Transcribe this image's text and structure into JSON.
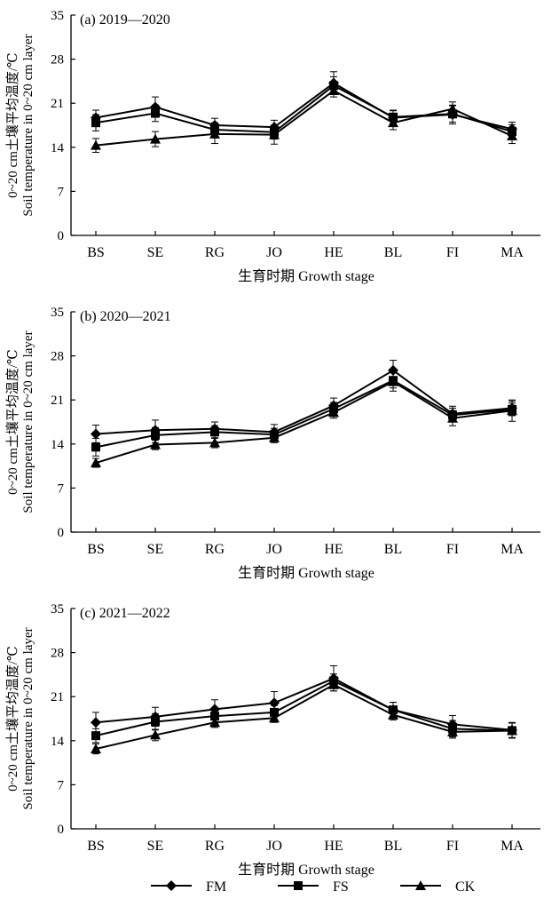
{
  "chart_data": [
    {
      "type": "line",
      "title": "(a) 2019—2020",
      "xlabel": "生育时期 Growth stage",
      "ylabel_line1": "0~20 cm土壤平均温度/℃",
      "ylabel_line2": "Soil temperature in 0~20 cm layer",
      "ylim": [
        0,
        35
      ],
      "yticks": [
        "0",
        "7",
        "14",
        "21",
        "28",
        "35"
      ],
      "categories": [
        "BS",
        "SE",
        "RG",
        "JO",
        "HE",
        "BL",
        "FI",
        "MA"
      ],
      "series": [
        {
          "name": "FM",
          "marker": "diamond",
          "values": [
            18.7,
            20.4,
            17.5,
            17.2,
            24.2,
            18.7,
            19.2,
            16.9
          ],
          "errors": [
            1.2,
            1.6,
            1.1,
            1.1,
            1.8,
            1.2,
            1.5,
            1.1
          ]
        },
        {
          "name": "FS",
          "marker": "square",
          "values": [
            17.9,
            19.4,
            16.8,
            16.4,
            23.8,
            18.8,
            19.3,
            16.5
          ],
          "errors": [
            1.3,
            1.3,
            1.1,
            1.1,
            1.4,
            1.0,
            1.3,
            1.1
          ]
        },
        {
          "name": "CK",
          "marker": "triangle",
          "values": [
            14.3,
            15.3,
            16.1,
            16.0,
            23.0,
            17.9,
            20.1,
            15.8
          ],
          "errors": [
            1.1,
            1.2,
            1.5,
            1.5,
            1.0,
            1.1,
            1.1,
            1.2
          ]
        }
      ]
    },
    {
      "type": "line",
      "title": "(b) 2020—2021",
      "xlabel": "生育时期 Growth stage",
      "ylabel_line1": "0~20 cm土壤平均温度/℃",
      "ylabel_line2": "Soil temperature in 0~20 cm layer",
      "ylim": [
        0,
        35
      ],
      "yticks": [
        "0",
        "7",
        "14",
        "21",
        "28",
        "35"
      ],
      "categories": [
        "BS",
        "SE",
        "RG",
        "JO",
        "HE",
        "BL",
        "FI",
        "MA"
      ],
      "series": [
        {
          "name": "FM",
          "marker": "diamond",
          "values": [
            15.6,
            16.2,
            16.4,
            15.9,
            20.1,
            25.7,
            18.8,
            19.7
          ],
          "errors": [
            1.4,
            1.6,
            1.1,
            1.2,
            1.2,
            1.6,
            1.2,
            1.1
          ]
        },
        {
          "name": "FS",
          "marker": "square",
          "values": [
            13.5,
            15.4,
            15.9,
            15.5,
            19.6,
            24.1,
            18.6,
            19.5
          ],
          "errors": [
            1.4,
            1.2,
            1.0,
            1.0,
            1.0,
            1.2,
            1.1,
            1.0
          ]
        },
        {
          "name": "CK",
          "marker": "triangle",
          "values": [
            11.0,
            13.9,
            14.2,
            15.0,
            19.0,
            23.9,
            18.1,
            19.3
          ],
          "errors": [
            0.7,
            0.8,
            0.8,
            0.8,
            0.9,
            1.5,
            1.2,
            1.7
          ]
        }
      ]
    },
    {
      "type": "line",
      "title": "(c) 2021—2022",
      "xlabel": "生育时期 Growth stage",
      "ylabel_line1": "0~20 cm土壤平均温度/℃",
      "ylabel_line2": "Soil temperature in 0~20 cm layer",
      "ylim": [
        0,
        35
      ],
      "yticks": [
        "0",
        "7",
        "14",
        "21",
        "28",
        "35"
      ],
      "categories": [
        "BS",
        "SE",
        "RG",
        "JO",
        "HE",
        "BL",
        "FI",
        "MA"
      ],
      "series": [
        {
          "name": "FM",
          "marker": "diamond",
          "values": [
            16.9,
            17.8,
            19.0,
            20.0,
            23.9,
            18.9,
            16.6,
            15.7
          ],
          "errors": [
            1.6,
            1.5,
            1.5,
            1.8,
            2.0,
            1.2,
            1.4,
            1.2
          ]
        },
        {
          "name": "FS",
          "marker": "square",
          "values": [
            14.8,
            17.0,
            17.9,
            18.5,
            23.5,
            18.9,
            15.9,
            15.6
          ],
          "errors": [
            1.1,
            1.3,
            1.2,
            1.1,
            1.1,
            1.2,
            1.3,
            1.2
          ]
        },
        {
          "name": "CK",
          "marker": "triangle",
          "values": [
            12.7,
            14.9,
            16.9,
            17.6,
            22.9,
            18.1,
            15.4,
            15.6
          ],
          "errors": [
            0.8,
            0.9,
            0.8,
            0.7,
            1.0,
            0.8,
            1.0,
            1.2
          ]
        }
      ]
    }
  ],
  "legend": {
    "placement": "bottom-center",
    "entries": [
      {
        "name": "FM",
        "marker": "diamond"
      },
      {
        "name": "FS",
        "marker": "square"
      },
      {
        "name": "CK",
        "marker": "triangle"
      }
    ]
  }
}
